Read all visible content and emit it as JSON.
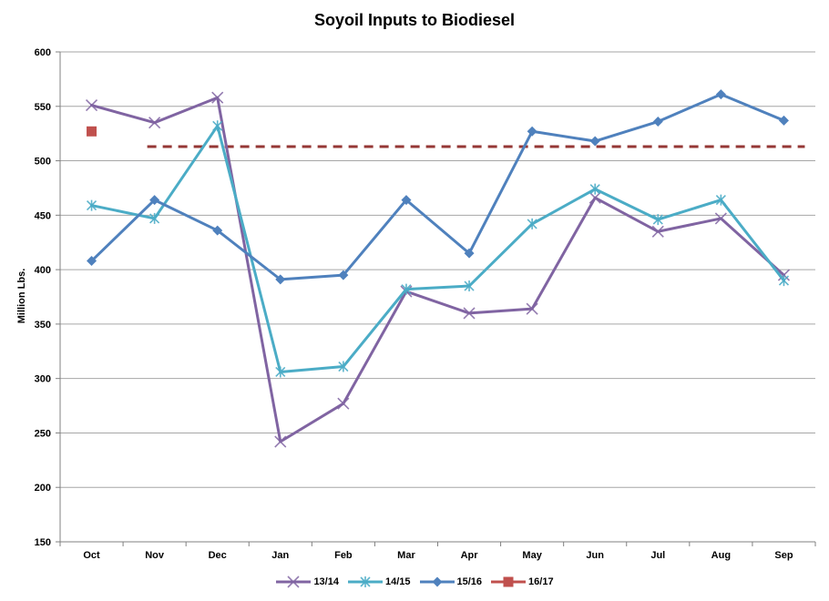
{
  "chart_data": {
    "type": "line",
    "title": "Soyoil Inputs to Biodiesel",
    "ylabel": "Million Lbs.",
    "categories": [
      "Oct",
      "Nov",
      "Dec",
      "Jan",
      "Feb",
      "Mar",
      "Apr",
      "May",
      "Jun",
      "Jul",
      "Aug",
      "Sep"
    ],
    "ylim": [
      150,
      600
    ],
    "yticks": [
      150,
      200,
      250,
      300,
      350,
      400,
      450,
      500,
      550,
      600
    ],
    "grid": true,
    "legend_position": "bottom-center",
    "colors": {
      "gridline": "#a6a6a6",
      "axis": "#808080",
      "background": "#ffffff"
    },
    "series": [
      {
        "name": "13/14",
        "color": "#8064A2",
        "marker": "x",
        "values": [
          551,
          535,
          558,
          242,
          277,
          380,
          360,
          364,
          466,
          435,
          447,
          395
        ]
      },
      {
        "name": "14/15",
        "color": "#4BACC6",
        "marker": "asterisk",
        "values": [
          459,
          447,
          532,
          306,
          311,
          382,
          385,
          442,
          474,
          446,
          464,
          390
        ]
      },
      {
        "name": "15/16",
        "color": "#4F81BD",
        "marker": "diamond",
        "values": [
          408,
          464,
          436,
          391,
          395,
          464,
          415,
          527,
          518,
          536,
          561,
          537
        ]
      },
      {
        "name": "16/17",
        "color": "#C0504D",
        "marker": "square",
        "values": [
          527,
          null,
          null,
          null,
          null,
          null,
          null,
          null,
          null,
          null,
          null,
          null
        ]
      }
    ],
    "dashed_line": {
      "value": 513,
      "color": "#953735",
      "style": "dashed",
      "from": "Nov",
      "to": "Sep"
    }
  }
}
